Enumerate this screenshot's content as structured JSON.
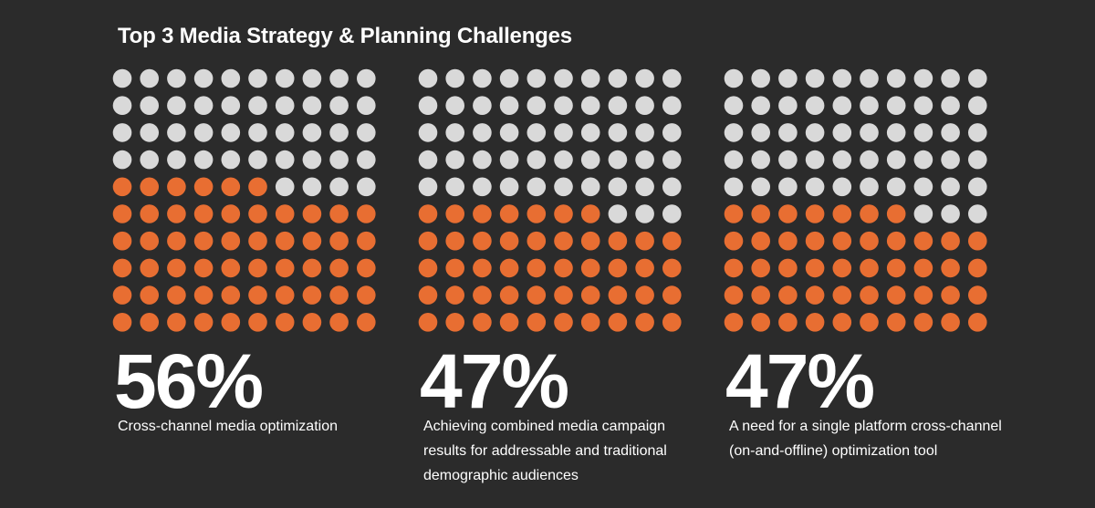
{
  "title": "Top 3 Media Strategy & Planning Challenges",
  "colors": {
    "background": "#2b2b2b",
    "filled": "#e86e32",
    "empty": "#d9d9d9",
    "text": "#ffffff"
  },
  "chart_data": [
    {
      "type": "waffle",
      "grid": [
        10,
        10
      ],
      "value": 56,
      "total": 100,
      "value_label": "56%",
      "label": "Cross-channel media optimization"
    },
    {
      "type": "waffle",
      "grid": [
        10,
        10
      ],
      "value": 47,
      "total": 100,
      "value_label": "47%",
      "label": "Achieving combined media campaign results for addressable and traditional demographic audiences"
    },
    {
      "type": "waffle",
      "grid": [
        10,
        10
      ],
      "value": 47,
      "total": 100,
      "value_label": "47%",
      "label": "A need for a single platform cross-channel (on-and-offline) optimization tool"
    }
  ]
}
